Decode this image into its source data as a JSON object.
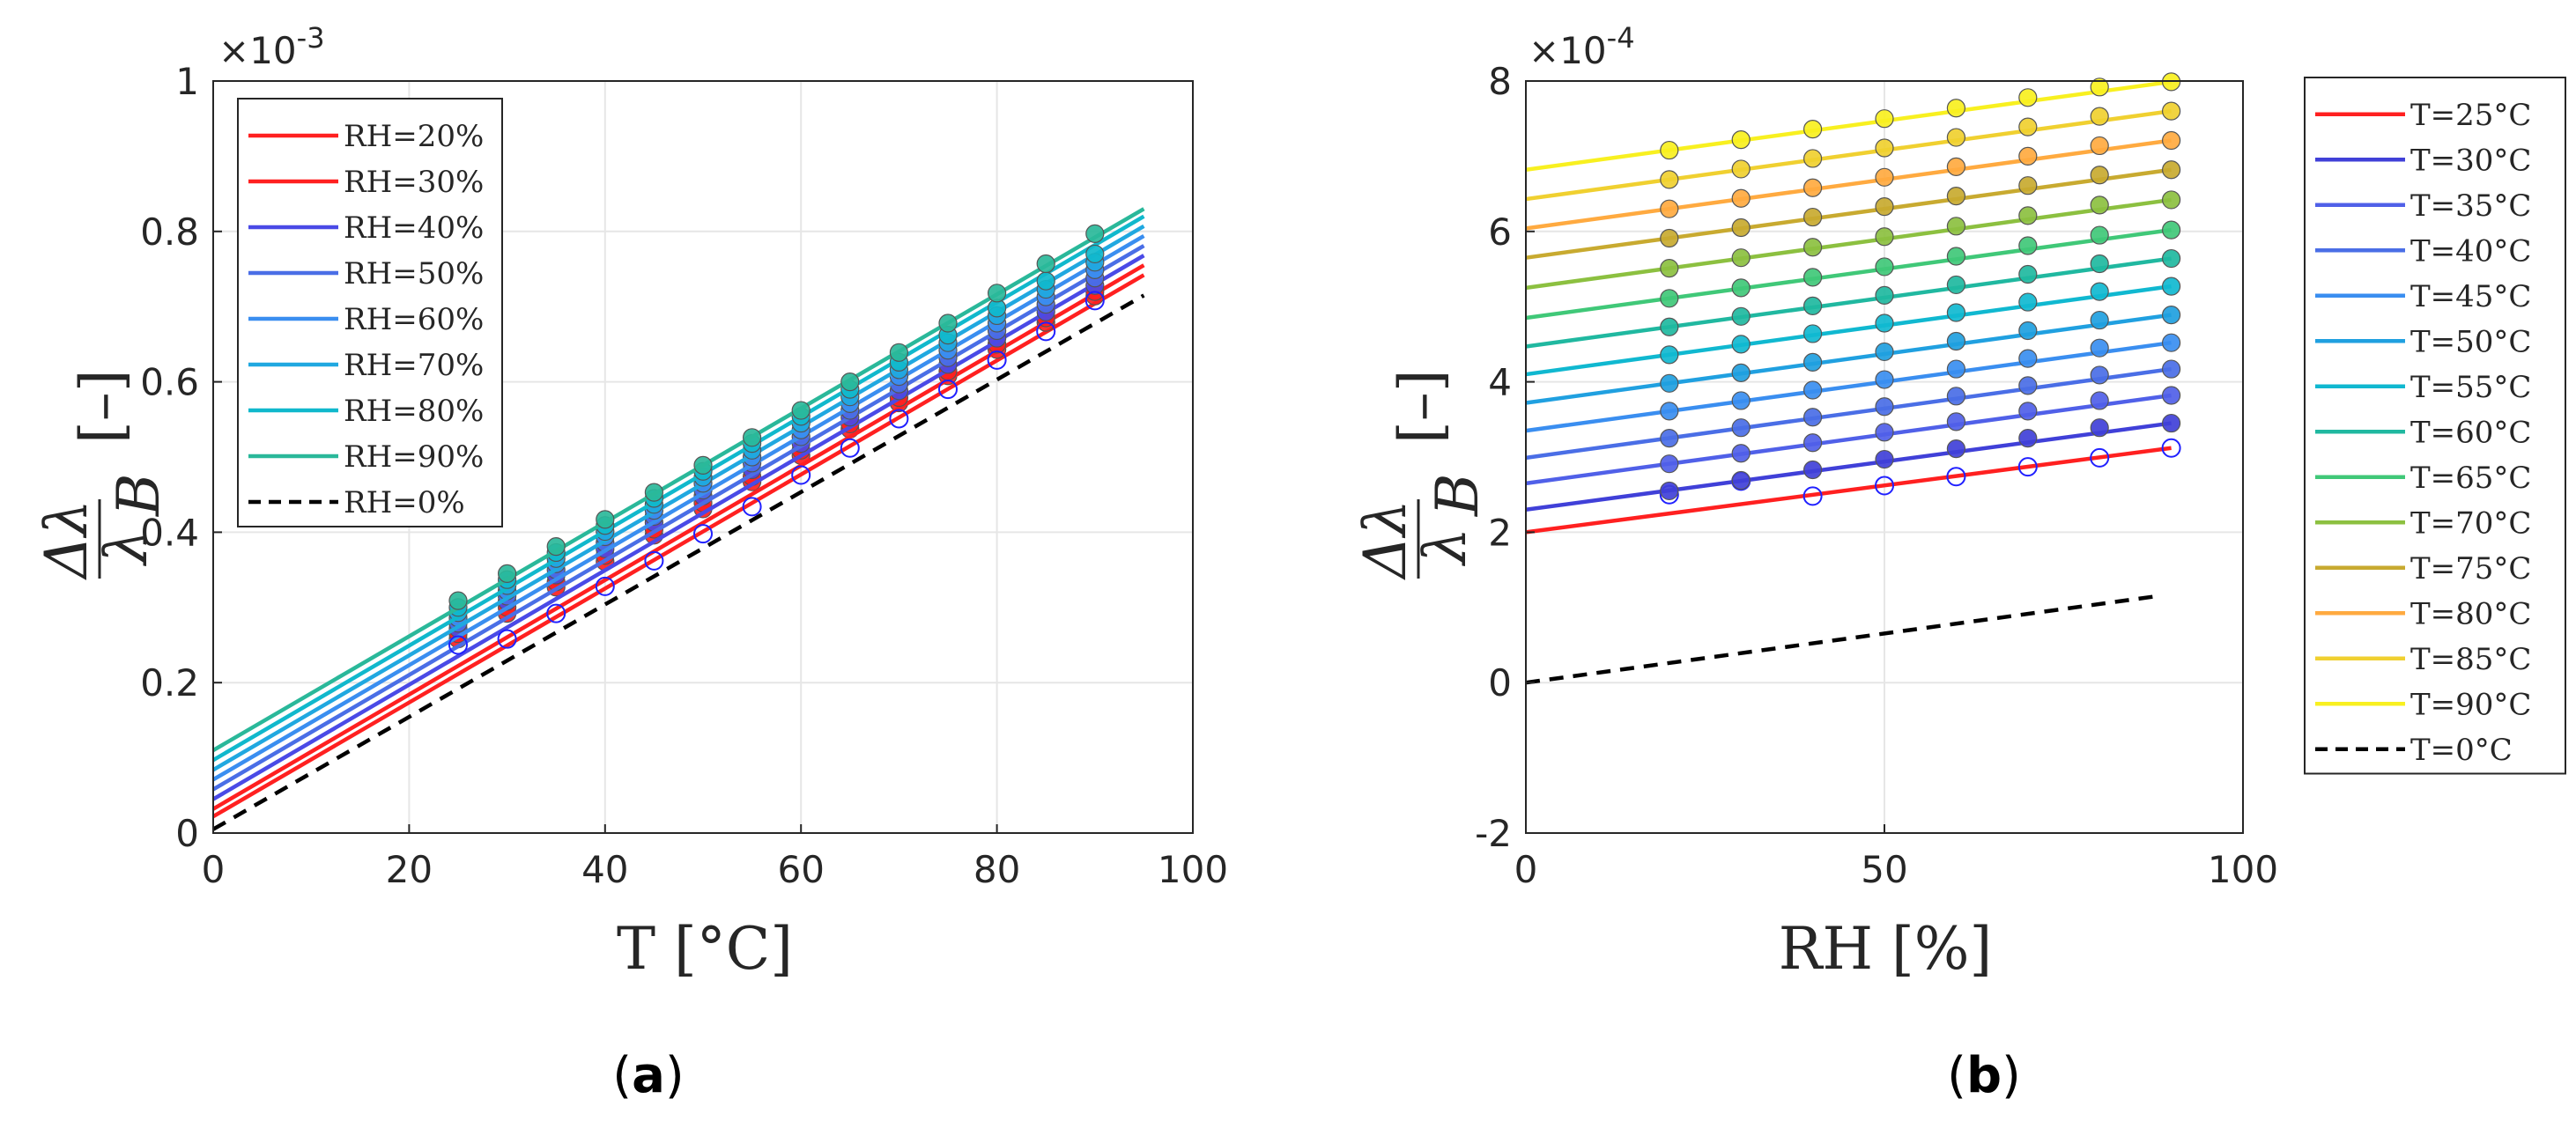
{
  "chart_data": [
    {
      "id": "a",
      "type": "line+scatter",
      "caption_open": "(",
      "caption_letter": "a",
      "caption_close": ")",
      "xlabel": "T [°C]",
      "ylabel": "Δλ/λ_B [-]",
      "ylabel_num": "Δλ",
      "ylabel_den": "λ",
      "ylabel_sub": "B",
      "ylabel_unit": "[–]",
      "xlim": [
        0,
        100
      ],
      "ylim": [
        0,
        1
      ],
      "xticks": [
        "0",
        "20",
        "40",
        "60",
        "80",
        "100"
      ],
      "yticks": [
        "0",
        "0.2",
        "0.4",
        "0.6",
        "0.8",
        "1"
      ],
      "exponent_label": "×10",
      "exponent_power": "-3",
      "legend_position": "top-left",
      "grid": true,
      "marker_x": [
        25,
        30,
        35,
        40,
        45,
        50,
        55,
        60,
        65,
        70,
        75,
        80,
        85,
        90
      ],
      "series": [
        {
          "name": "RH=20%",
          "color": "#ff2020",
          "fit_x": [
            0,
            95
          ],
          "fit_y": [
            0.022,
            0.742
          ],
          "marker_y": [
            0.258,
            0.292,
            0.327,
            0.361,
            0.396,
            0.431,
            0.467,
            0.502,
            0.537,
            0.572,
            0.608,
            0.643,
            0.679,
            0.714
          ],
          "marker": "filled"
        },
        {
          "name": "RH=30%",
          "color": "#ff2020",
          "fit_x": [
            0,
            95
          ],
          "fit_y": [
            0.032,
            0.755
          ],
          "marker_y": [
            0.265,
            0.3,
            0.334,
            0.369,
            0.404,
            0.439,
            0.474,
            0.509,
            0.544,
            0.579,
            0.614,
            0.65,
            0.685,
            0.72
          ],
          "marker": "filled"
        },
        {
          "name": "RH=40%",
          "color": "#4a4ae6",
          "fit_x": [
            0,
            95
          ],
          "fit_y": [
            0.045,
            0.768
          ],
          "marker_y": [
            0.272,
            0.308,
            0.343,
            0.378,
            0.413,
            0.448,
            0.483,
            0.518,
            0.553,
            0.588,
            0.623,
            0.658,
            0.693,
            0.728
          ],
          "marker": "filled"
        },
        {
          "name": "RH=50%",
          "color": "#4a6ee6",
          "fit_x": [
            0,
            95
          ],
          "fit_y": [
            0.058,
            0.781
          ],
          "marker_y": [
            0.279,
            0.315,
            0.35,
            0.386,
            0.421,
            0.456,
            0.492,
            0.527,
            0.562,
            0.597,
            0.632,
            0.668,
            0.703,
            0.738
          ],
          "marker": "filled"
        },
        {
          "name": "RH=60%",
          "color": "#3a8ef0",
          "fit_x": [
            0,
            95
          ],
          "fit_y": [
            0.071,
            0.794
          ],
          "marker_y": [
            0.286,
            0.322,
            0.358,
            0.394,
            0.429,
            0.465,
            0.5,
            0.536,
            0.571,
            0.607,
            0.642,
            0.678,
            0.713,
            0.749
          ],
          "marker": "filled"
        },
        {
          "name": "RH=70%",
          "color": "#20a8e0",
          "fit_x": [
            0,
            95
          ],
          "fit_y": [
            0.084,
            0.807
          ],
          "marker_y": [
            0.293,
            0.329,
            0.365,
            0.401,
            0.437,
            0.473,
            0.509,
            0.545,
            0.58,
            0.616,
            0.652,
            0.688,
            0.723,
            0.759
          ],
          "marker": "filled"
        },
        {
          "name": "RH=80%",
          "color": "#10b8cc",
          "fit_x": [
            0,
            95
          ],
          "fit_y": [
            0.097,
            0.82
          ],
          "marker_y": [
            0.3,
            0.337,
            0.373,
            0.409,
            0.445,
            0.481,
            0.518,
            0.554,
            0.59,
            0.626,
            0.662,
            0.698,
            0.734,
            0.77
          ],
          "marker": "filled"
        },
        {
          "name": "RH=90%",
          "color": "#2ab89a",
          "fit_x": [
            0,
            95
          ],
          "fit_y": [
            0.11,
            0.83
          ],
          "marker_y": [
            0.309,
            0.345,
            0.381,
            0.417,
            0.453,
            0.489,
            0.526,
            0.562,
            0.6,
            0.639,
            0.678,
            0.718,
            0.757,
            0.797
          ],
          "marker": "filled"
        },
        {
          "name": "RH=0%",
          "color": "#000000",
          "dashed": true,
          "fit_x": [
            0,
            95
          ],
          "fit_y": [
            0.005,
            0.715
          ],
          "marker_y": [
            0.25,
            0.258,
            0.292,
            0.328,
            0.362,
            0.398,
            0.434,
            0.476,
            0.512,
            0.551,
            0.59,
            0.629,
            0.667,
            0.708
          ],
          "marker": "open"
        }
      ]
    },
    {
      "id": "b",
      "type": "line+scatter",
      "caption_open": "(",
      "caption_letter": "b",
      "caption_close": ")",
      "xlabel": "RH [%]",
      "ylabel": "Δλ/λ_B [-]",
      "ylabel_num": "Δλ",
      "ylabel_den": "λ",
      "ylabel_sub": "B",
      "ylabel_unit": "[–]",
      "xlim": [
        0,
        100
      ],
      "ylim": [
        -2,
        8
      ],
      "xticks": [
        "0",
        "50",
        "100"
      ],
      "yticks": [
        "-2",
        "0",
        "2",
        "4",
        "6",
        "8"
      ],
      "exponent_label": "×10",
      "exponent_power": "-4",
      "legend_position": "outside-right",
      "grid": true,
      "marker_x": [
        20,
        30,
        40,
        50,
        60,
        70,
        80,
        90
      ],
      "series": [
        {
          "name": "T=25°C",
          "color": "#ff2020",
          "fit_x": [
            0,
            90
          ],
          "fit_y": [
            2.0,
            3.12
          ],
          "marker_y": [
            2.5,
            2.68,
            2.48,
            2.62,
            2.74,
            2.87,
            2.99,
            3.12
          ],
          "marker": "open"
        },
        {
          "name": "T=30°C",
          "color": "#4040d8",
          "fit_x": [
            0,
            90
          ],
          "fit_y": [
            2.3,
            3.45
          ],
          "marker_y": [
            2.55,
            2.69,
            2.83,
            2.97,
            3.11,
            3.25,
            3.39,
            3.45
          ],
          "marker": "filled"
        },
        {
          "name": "T=35°C",
          "color": "#5060e8",
          "fit_x": [
            0,
            90
          ],
          "fit_y": [
            2.65,
            3.82
          ],
          "marker_y": [
            2.91,
            3.05,
            3.19,
            3.33,
            3.47,
            3.61,
            3.75,
            3.82
          ],
          "marker": "filled"
        },
        {
          "name": "T=40°C",
          "color": "#4a6ee6",
          "fit_x": [
            0,
            90
          ],
          "fit_y": [
            2.99,
            4.17
          ],
          "marker_y": [
            3.25,
            3.39,
            3.53,
            3.67,
            3.81,
            3.95,
            4.09,
            4.17
          ],
          "marker": "filled"
        },
        {
          "name": "T=45°C",
          "color": "#3a8ef0",
          "fit_x": [
            0,
            90
          ],
          "fit_y": [
            3.35,
            4.52
          ],
          "marker_y": [
            3.61,
            3.75,
            3.89,
            4.03,
            4.17,
            4.31,
            4.45,
            4.52
          ],
          "marker": "filled"
        },
        {
          "name": "T=50°C",
          "color": "#20a0e0",
          "fit_x": [
            0,
            90
          ],
          "fit_y": [
            3.72,
            4.89
          ],
          "marker_y": [
            3.98,
            4.12,
            4.26,
            4.4,
            4.54,
            4.68,
            4.82,
            4.89
          ],
          "marker": "filled"
        },
        {
          "name": "T=55°C",
          "color": "#10b8d0",
          "fit_x": [
            0,
            90
          ],
          "fit_y": [
            4.1,
            5.27
          ],
          "marker_y": [
            4.36,
            4.5,
            4.64,
            4.78,
            4.92,
            5.06,
            5.2,
            5.27
          ],
          "marker": "filled"
        },
        {
          "name": "T=60°C",
          "color": "#20b8a0",
          "fit_x": [
            0,
            90
          ],
          "fit_y": [
            4.47,
            5.64
          ],
          "marker_y": [
            4.73,
            4.87,
            5.01,
            5.15,
            5.29,
            5.43,
            5.57,
            5.64
          ],
          "marker": "filled"
        },
        {
          "name": "T=65°C",
          "color": "#40c878",
          "fit_x": [
            0,
            90
          ],
          "fit_y": [
            4.85,
            6.02
          ],
          "marker_y": [
            5.11,
            5.25,
            5.39,
            5.53,
            5.67,
            5.81,
            5.95,
            6.02
          ],
          "marker": "filled"
        },
        {
          "name": "T=70°C",
          "color": "#8cc040",
          "fit_x": [
            0,
            90
          ],
          "fit_y": [
            5.25,
            6.42
          ],
          "marker_y": [
            5.51,
            5.65,
            5.79,
            5.93,
            6.07,
            6.21,
            6.35,
            6.42
          ],
          "marker": "filled"
        },
        {
          "name": "T=75°C",
          "color": "#c8aa30",
          "fit_x": [
            0,
            90
          ],
          "fit_y": [
            5.65,
            6.82
          ],
          "marker_y": [
            5.91,
            6.05,
            6.19,
            6.33,
            6.47,
            6.61,
            6.75,
            6.82
          ],
          "marker": "filled"
        },
        {
          "name": "T=80°C",
          "color": "#ffaa40",
          "fit_x": [
            0,
            90
          ],
          "fit_y": [
            6.04,
            7.21
          ],
          "marker_y": [
            6.3,
            6.44,
            6.58,
            6.72,
            6.86,
            7.0,
            7.14,
            7.21
          ],
          "marker": "filled"
        },
        {
          "name": "T=85°C",
          "color": "#f0d030",
          "fit_x": [
            0,
            90
          ],
          "fit_y": [
            6.43,
            7.6
          ],
          "marker_y": [
            6.69,
            6.83,
            6.97,
            7.11,
            7.25,
            7.39,
            7.53,
            7.6
          ],
          "marker": "filled"
        },
        {
          "name": "T=90°C",
          "color": "#f8f020",
          "fit_x": [
            0,
            90
          ],
          "fit_y": [
            6.82,
            7.99
          ],
          "marker_y": [
            7.08,
            7.22,
            7.36,
            7.5,
            7.64,
            7.78,
            7.92,
            7.99
          ],
          "marker": "filled"
        },
        {
          "name": "T=0°C",
          "color": "#000000",
          "dashed": true,
          "fit_x": [
            0,
            88
          ],
          "fit_y": [
            0.0,
            1.15
          ],
          "marker_y": [],
          "marker": "none"
        }
      ]
    }
  ]
}
